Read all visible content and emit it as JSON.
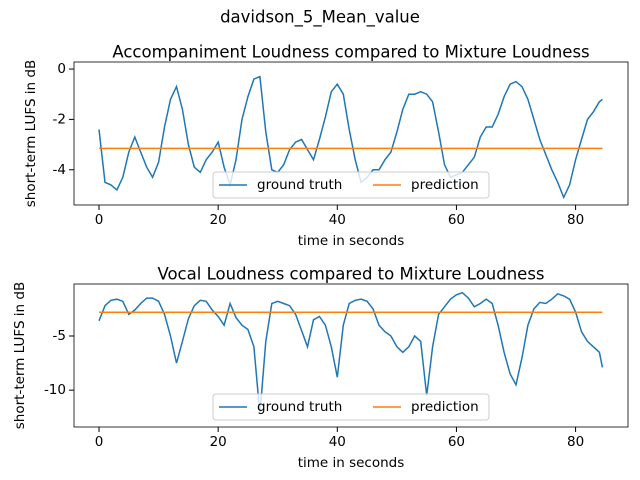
{
  "title": "davidson_5_Mean_value",
  "chart_data": [
    {
      "type": "line",
      "title": "Accompaniment Loudness compared to Mixture Loudness",
      "xlabel": "time in seconds",
      "ylabel": "short-term LUFS in dB",
      "xlim": [
        -4.2,
        88.8
      ],
      "xticks": [
        0,
        20,
        40,
        60,
        80
      ],
      "ylim": [
        -5.4,
        0.28
      ],
      "yticks": [
        -4,
        -2,
        0
      ],
      "legend": "lower center",
      "x": [
        0,
        1,
        2,
        3,
        4,
        5,
        6,
        7,
        8,
        9,
        10,
        11,
        12,
        13,
        14,
        15,
        16,
        17,
        18,
        19,
        20,
        21,
        22,
        23,
        24,
        25,
        26,
        27,
        28,
        29,
        30,
        31,
        32,
        33,
        34,
        35,
        36,
        37,
        38,
        39,
        40,
        41,
        42,
        43,
        44,
        45,
        46,
        47,
        48,
        49,
        50,
        51,
        52,
        53,
        54,
        55,
        56,
        57,
        58,
        59,
        60,
        61,
        62,
        63,
        64,
        65,
        66,
        67,
        68,
        69,
        70,
        71,
        72,
        73,
        74,
        75,
        76,
        77,
        78,
        79,
        80,
        81,
        82,
        83,
        84,
        84.5
      ],
      "series": [
        {
          "name": "ground truth",
          "color": "#1f77b4",
          "values": [
            -2.4,
            -4.5,
            -4.6,
            -4.8,
            -4.3,
            -3.3,
            -2.7,
            -3.3,
            -3.9,
            -4.3,
            -3.7,
            -2.3,
            -1.2,
            -0.7,
            -1.6,
            -3.0,
            -3.9,
            -4.1,
            -3.6,
            -3.3,
            -2.9,
            -3.9,
            -4.6,
            -3.6,
            -2.0,
            -1.1,
            -0.4,
            -0.3,
            -2.5,
            -4.0,
            -4.1,
            -3.8,
            -3.2,
            -2.9,
            -2.8,
            -3.2,
            -3.6,
            -2.8,
            -1.9,
            -0.9,
            -0.6,
            -1.0,
            -2.4,
            -3.6,
            -4.5,
            -4.3,
            -4.0,
            -4.0,
            -3.6,
            -3.3,
            -2.5,
            -1.6,
            -1.0,
            -1.0,
            -0.9,
            -1.0,
            -1.3,
            -2.5,
            -3.8,
            -4.3,
            -4.2,
            -4.1,
            -3.8,
            -3.5,
            -2.7,
            -2.3,
            -2.3,
            -1.8,
            -1.1,
            -0.6,
            -0.5,
            -0.7,
            -1.2,
            -2.0,
            -2.8,
            -3.4,
            -4.0,
            -4.5,
            -5.1,
            -4.6,
            -3.6,
            -2.8,
            -2.0,
            -1.7,
            -1.3,
            -1.2
          ]
        },
        {
          "name": "prediction",
          "color": "#ff7f0e",
          "x": [
            0,
            84.5
          ],
          "values": [
            -3.15,
            -3.15
          ]
        }
      ]
    },
    {
      "type": "line",
      "title": "Vocal Loudness compared to Mixture Loudness",
      "xlabel": "time in seconds",
      "ylabel": "short-term LUFS in dB",
      "xlim": [
        -4.2,
        88.8
      ],
      "xticks": [
        0,
        20,
        40,
        60,
        80
      ],
      "ylim": [
        -13.4,
        -0.2
      ],
      "yticks": [
        -10,
        -5
      ],
      "legend": "lower center",
      "x": [
        0,
        1,
        2,
        3,
        4,
        5,
        6,
        7,
        8,
        9,
        10,
        11,
        12,
        13,
        14,
        15,
        16,
        17,
        18,
        19,
        20,
        21,
        22,
        23,
        24,
        25,
        26,
        27,
        28,
        29,
        30,
        31,
        32,
        33,
        34,
        35,
        36,
        37,
        38,
        39,
        40,
        41,
        42,
        43,
        44,
        45,
        46,
        47,
        48,
        49,
        50,
        51,
        52,
        53,
        54,
        55,
        56,
        57,
        58,
        59,
        60,
        61,
        62,
        63,
        64,
        65,
        66,
        67,
        68,
        69,
        70,
        71,
        72,
        73,
        74,
        75,
        76,
        77,
        78,
        79,
        80,
        81,
        82,
        83,
        84,
        84.5
      ],
      "series": [
        {
          "name": "ground truth",
          "color": "#1f77b4",
          "values": [
            -3.6,
            -2.2,
            -1.7,
            -1.6,
            -1.8,
            -3.0,
            -2.6,
            -2.0,
            -1.5,
            -1.5,
            -1.8,
            -3.0,
            -5.0,
            -7.5,
            -5.5,
            -3.4,
            -2.2,
            -1.7,
            -1.8,
            -2.6,
            -3.2,
            -4.0,
            -2.0,
            -3.3,
            -4.0,
            -4.4,
            -6.0,
            -12.2,
            -5.5,
            -2.0,
            -1.8,
            -2.0,
            -2.2,
            -3.0,
            -4.5,
            -6.0,
            -3.5,
            -3.2,
            -4.0,
            -6.0,
            -8.8,
            -4.0,
            -2.0,
            -1.7,
            -1.6,
            -1.8,
            -2.5,
            -4.0,
            -4.6,
            -5.0,
            -6.0,
            -6.5,
            -6.0,
            -5.0,
            -5.5,
            -10.5,
            -6.0,
            -3.0,
            -2.3,
            -1.6,
            -1.2,
            -1.0,
            -1.5,
            -2.3,
            -2.0,
            -1.6,
            -2.0,
            -4.0,
            -6.5,
            -8.5,
            -9.5,
            -7.0,
            -4.0,
            -2.5,
            -1.9,
            -2.0,
            -1.6,
            -1.1,
            -1.3,
            -1.6,
            -2.8,
            -4.6,
            -5.5,
            -6.0,
            -6.5,
            -7.9
          ]
        },
        {
          "name": "prediction",
          "color": "#ff7f0e",
          "x": [
            0,
            84.5
          ],
          "values": [
            -2.8,
            -2.8
          ]
        }
      ]
    }
  ]
}
